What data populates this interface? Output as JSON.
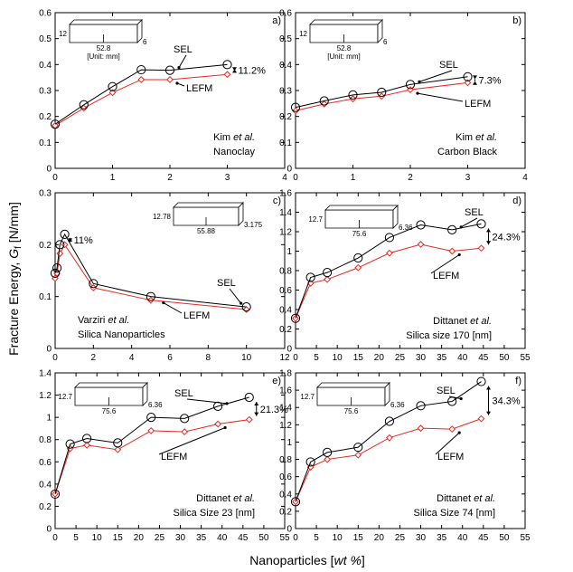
{
  "figure": {
    "ylabel_main": "Fracture Energy, ",
    "ylabel_sym": "G",
    "ylabel_sub": "f",
    "ylabel_unit": " [N/mm]",
    "xlabel_main": "Nanoparticles [",
    "xlabel_unit": "wt %",
    "xlabel_end": "]"
  },
  "colors": {
    "sel": "#000000",
    "lefm": "#e8281e",
    "box": "#000000"
  },
  "chart_data": [
    {
      "type": "line",
      "panel": "a)",
      "xlim": [
        0,
        4
      ],
      "ylim": [
        0,
        0.6
      ],
      "xticks": [
        "0",
        "1",
        "2",
        "3",
        "4"
      ],
      "yticks": [
        "0",
        "0.1",
        "0.2",
        "0.3",
        "0.4",
        "0.5",
        "0.6"
      ],
      "series": [
        {
          "name": "SEL",
          "x": [
            0,
            0.5,
            1,
            1.5,
            2,
            3
          ],
          "values": [
            0.17,
            0.245,
            0.315,
            0.38,
            0.378,
            0.4
          ]
        },
        {
          "name": "LEFM",
          "x": [
            0,
            0.5,
            1,
            1.5,
            2,
            3
          ],
          "values": [
            0.165,
            0.232,
            0.292,
            0.342,
            0.342,
            0.362
          ]
        }
      ],
      "sel_label": "SEL",
      "lefm_label": "LEFM",
      "diff": "11.2%",
      "author": "Kim",
      "etal": " et al.",
      "material": "Nanoclay",
      "specimen": {
        "h": "12",
        "l": "52.8",
        "w": "6",
        "unit": "[Unit: mm]"
      }
    },
    {
      "type": "line",
      "panel": "b)",
      "xlim": [
        0,
        4
      ],
      "ylim": [
        0,
        0.6
      ],
      "xticks": [
        "0",
        "1",
        "2",
        "3",
        "4"
      ],
      "yticks": [
        "0",
        "0.1",
        "0.2",
        "0.3",
        "0.4",
        "0.5",
        "0.6"
      ],
      "series": [
        {
          "name": "SEL",
          "x": [
            0,
            0.5,
            1,
            1.5,
            2,
            3
          ],
          "values": [
            0.235,
            0.26,
            0.283,
            0.293,
            0.323,
            0.353
          ]
        },
        {
          "name": "LEFM",
          "x": [
            0,
            0.5,
            1,
            1.5,
            2,
            3
          ],
          "values": [
            0.222,
            0.248,
            0.268,
            0.278,
            0.303,
            0.33
          ]
        }
      ],
      "sel_label": "SEL",
      "lefm_label": "LEFM",
      "diff": "7.3%",
      "author": "Kim",
      "etal": " et al.",
      "material": "Carbon Black",
      "specimen": {
        "h": "12",
        "l": "52.8",
        "w": "6",
        "unit": "[Unit: mm]"
      }
    },
    {
      "type": "line",
      "panel": "c)",
      "xlim": [
        0,
        12
      ],
      "ylim": [
        0,
        0.3
      ],
      "xticks": [
        "0",
        "2",
        "4",
        "6",
        "8",
        "10",
        "12"
      ],
      "yticks": [
        "0",
        "0.1",
        "0.2",
        "0.3"
      ],
      "series": [
        {
          "name": "SEL",
          "x": [
            0,
            0.1,
            0.25,
            0.5,
            2,
            5,
            10
          ],
          "values": [
            0.145,
            0.155,
            0.2,
            0.22,
            0.125,
            0.1,
            0.08
          ]
        },
        {
          "name": "LEFM",
          "x": [
            0,
            0.1,
            0.25,
            0.5,
            2,
            5,
            10
          ],
          "values": [
            0.135,
            0.145,
            0.183,
            0.2,
            0.117,
            0.093,
            0.075
          ]
        }
      ],
      "sel_label": "SEL",
      "lefm_label": "LEFM",
      "diff": "11%",
      "author": "Varziri",
      "etal": " et al.",
      "material": "Silica Nanoparticles",
      "specimen": {
        "h": "12.78",
        "l": "55.88",
        "w": "3.175",
        "unit": ""
      }
    },
    {
      "type": "line",
      "panel": "d)",
      "xlim": [
        0,
        55
      ],
      "ylim": [
        0,
        1.6
      ],
      "xticks": [
        "0",
        "5",
        "10",
        "15",
        "20",
        "25",
        "30",
        "35",
        "40",
        "45",
        "50",
        "55"
      ],
      "yticks": [
        "0",
        "0.2",
        "0.4",
        "0.6",
        "0.8",
        "1",
        "1.2",
        "1.4",
        "1.6"
      ],
      "series": [
        {
          "name": "SEL",
          "x": [
            0,
            3.6,
            7.6,
            15,
            22.5,
            30,
            37.5,
            44.5
          ],
          "values": [
            0.31,
            0.73,
            0.78,
            0.93,
            1.14,
            1.27,
            1.22,
            1.28
          ]
        },
        {
          "name": "LEFM",
          "x": [
            0,
            3.6,
            7.6,
            15,
            22.5,
            30,
            37.5,
            44.5
          ],
          "values": [
            0.31,
            0.67,
            0.71,
            0.83,
            0.98,
            1.07,
            1.0,
            1.03
          ]
        }
      ],
      "sel_label": "SEL",
      "lefm_label": "LEFM",
      "diff": "24.3%",
      "author": "Dittanet",
      "etal": " et al.",
      "material": "Silica size 170 [nm]",
      "specimen": {
        "h": "12.7",
        "l": "75.6",
        "w": "6.36",
        "unit": ""
      }
    },
    {
      "type": "line",
      "panel": "e)",
      "xlim": [
        0,
        55
      ],
      "ylim": [
        0,
        1.4
      ],
      "xticks": [
        "0",
        "5",
        "10",
        "15",
        "20",
        "25",
        "30",
        "35",
        "40",
        "45",
        "50",
        "55"
      ],
      "yticks": [
        "0",
        "0.2",
        "0.4",
        "0.6",
        "0.8",
        "1",
        "1.2",
        "1.4"
      ],
      "series": [
        {
          "name": "SEL",
          "x": [
            0,
            3.6,
            7.6,
            15,
            23,
            31,
            39,
            46.5
          ],
          "values": [
            0.31,
            0.76,
            0.81,
            0.77,
            1.0,
            0.99,
            1.1,
            1.18
          ]
        },
        {
          "name": "LEFM",
          "x": [
            0,
            3.6,
            7.6,
            15,
            23,
            31,
            39,
            46.5
          ],
          "values": [
            0.31,
            0.72,
            0.75,
            0.71,
            0.88,
            0.87,
            0.94,
            0.98
          ]
        }
      ],
      "sel_label": "SEL",
      "lefm_label": "LEFM",
      "diff": "21.3%",
      "author": "Dittanet",
      "etal": " et al.",
      "material": "Silica Size 23 [nm]",
      "specimen": {
        "h": "12.7",
        "l": "75.6",
        "w": "6.36",
        "unit": ""
      }
    },
    {
      "type": "line",
      "panel": "f)",
      "xlim": [
        0,
        55
      ],
      "ylim": [
        0,
        1.8
      ],
      "xticks": [
        "0",
        "5",
        "10",
        "15",
        "20",
        "25",
        "30",
        "35",
        "40",
        "45",
        "50",
        "55"
      ],
      "yticks": [
        "0",
        "0.2",
        "0.4",
        "0.6",
        "0.8",
        "1",
        "1.2",
        "1.4",
        "1.6",
        "1.8"
      ],
      "series": [
        {
          "name": "SEL",
          "x": [
            0,
            3.6,
            7.6,
            15,
            22.5,
            30,
            37.5,
            44.5
          ],
          "values": [
            0.31,
            0.77,
            0.88,
            0.94,
            1.24,
            1.42,
            1.47,
            1.7
          ]
        },
        {
          "name": "LEFM",
          "x": [
            0,
            3.6,
            7.6,
            15,
            22.5,
            30,
            37.5,
            44.5
          ],
          "values": [
            0.31,
            0.71,
            0.8,
            0.85,
            1.05,
            1.16,
            1.15,
            1.27
          ]
        }
      ],
      "sel_label": "SEL",
      "lefm_label": "LEFM",
      "diff": "34.3%",
      "author": "Dittanet",
      "etal": " et al.",
      "material": "Silica Size 74 [nm]",
      "specimen": {
        "h": "12.7",
        "l": "75.6",
        "w": "6.36",
        "unit": ""
      }
    }
  ]
}
